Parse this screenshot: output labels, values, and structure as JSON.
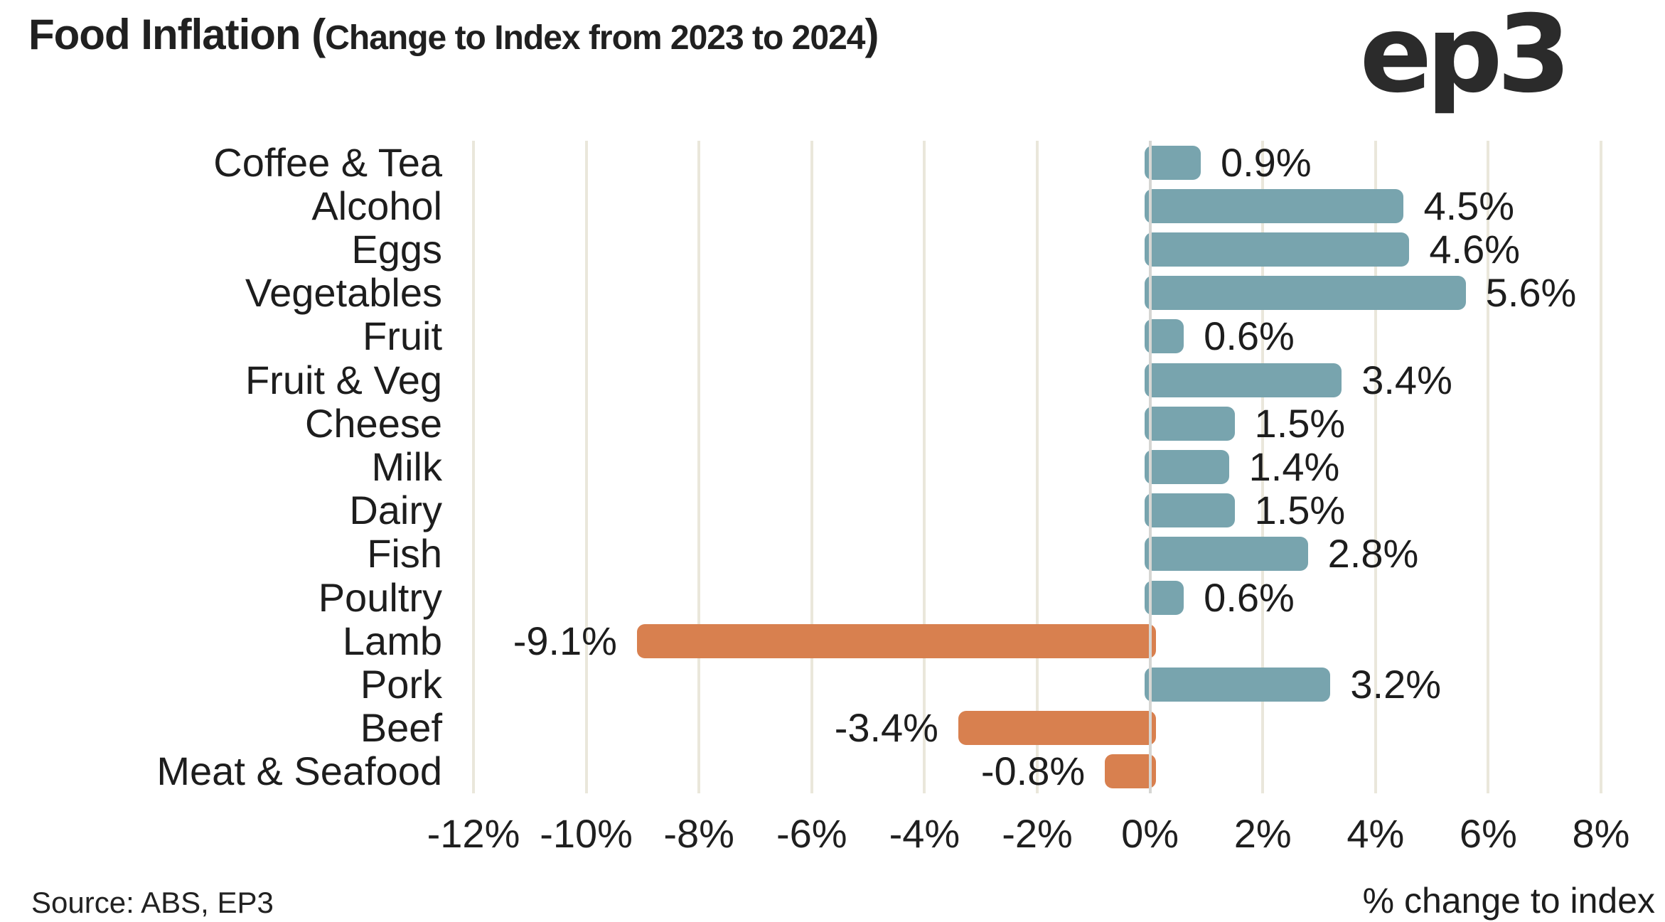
{
  "header": {
    "title_main": "Food Inflation (",
    "title_sub": "Change to Index from 2023 to 2024",
    "title_close": ")",
    "logo_text": "ep3"
  },
  "footer": {
    "source": "Source: ABS, EP3",
    "axis_title": "% change to index"
  },
  "chart_data": {
    "type": "bar",
    "orientation": "horizontal",
    "title": "Food Inflation (Change to Index from 2023 to 2024)",
    "categories": [
      "Coffee & Tea",
      "Alcohol",
      "Eggs",
      "Vegetables",
      "Fruit",
      "Fruit & Veg",
      "Cheese",
      "Milk",
      "Dairy",
      "Fish",
      "Poultry",
      "Lamb",
      "Pork",
      "Beef",
      "Meat & Seafood"
    ],
    "values": [
      0.9,
      4.5,
      4.6,
      5.6,
      0.6,
      3.4,
      1.5,
      1.4,
      1.5,
      2.8,
      0.6,
      -9.1,
      3.2,
      -3.4,
      -0.8
    ],
    "data_labels": [
      "0.9%",
      "4.5%",
      "4.6%",
      "5.6%",
      "0.6%",
      "3.4%",
      "1.5%",
      "1.4%",
      "1.5%",
      "2.8%",
      "0.6%",
      "-9.1%",
      "3.2%",
      "-3.4%",
      "-0.8%"
    ],
    "xlabel": "% change to index",
    "xlim": [
      -12,
      8
    ],
    "xticks": [
      -12,
      -10,
      -8,
      -6,
      -4,
      -2,
      0,
      2,
      4,
      6,
      8
    ],
    "xtick_labels": [
      "-12%",
      "-10%",
      "-8%",
      "-6%",
      "-4%",
      "-2%",
      "0%",
      "2%",
      "4%",
      "6%",
      "8%"
    ],
    "colors": {
      "positive": "#78a4ae",
      "negative": "#d8804f",
      "gridline": "#eae7db",
      "zero_line": "#d6d6d3"
    },
    "grid": true,
    "legend": false,
    "source": "Source: ABS, EP3"
  }
}
